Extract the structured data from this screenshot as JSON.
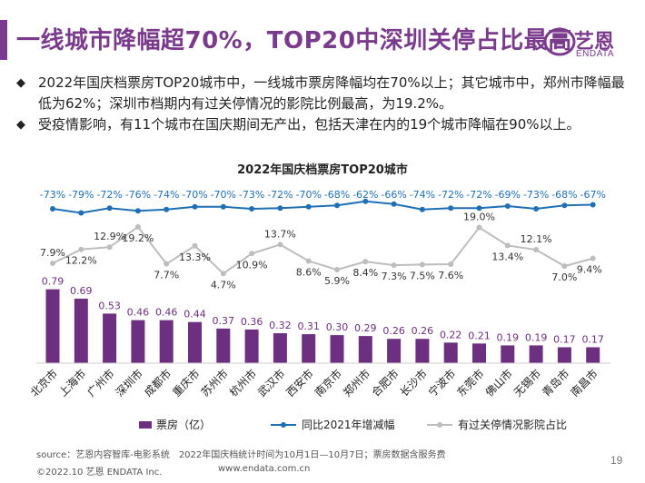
{
  "header": {
    "title": "一线城市降幅超70%，TOP20中深圳关停占比最高",
    "logo_cn": "艺恩",
    "logo_en": "ENDATA"
  },
  "bullets": [
    {
      "marker": "◆",
      "text": "2022年国庆档票房TOP20城市中，一线城市票房降幅均在70%以上；其它城市中，郑州市降幅最低为62%；深圳市档期内有过关停情况的影院比例最高，为19.2%。"
    },
    {
      "marker": "◆",
      "text": "受疫情影响，有11个城市在国庆期间无产出，包括天津在内的19个城市降幅在90%以上。"
    }
  ],
  "chart_data": {
    "type": "bar",
    "title": "2022年国庆档票房TOP20城市",
    "categories": [
      "北京市",
      "上海市",
      "广州市",
      "深圳市",
      "成都市",
      "重庆市",
      "苏州市",
      "杭州市",
      "武汉市",
      "西安市",
      "南京市",
      "郑州市",
      "合肥市",
      "长沙市",
      "宁波市",
      "东莞市",
      "佛山市",
      "无锡市",
      "青岛市",
      "南昌市"
    ],
    "series": [
      {
        "name": "票房（亿）",
        "kind": "bar",
        "color": "#6d2f7f",
        "values": [
          0.79,
          0.69,
          0.53,
          0.46,
          0.46,
          0.44,
          0.37,
          0.36,
          0.32,
          0.31,
          0.3,
          0.29,
          0.26,
          0.26,
          0.22,
          0.21,
          0.19,
          0.19,
          0.17,
          0.17
        ],
        "labels": [
          "0.79",
          "0.69",
          "0.53",
          "0.46",
          "0.46",
          "0.44",
          "0.37",
          "0.36",
          "0.32",
          "0.31",
          "0.30",
          "0.29",
          "0.26",
          "0.26",
          "0.22",
          "0.21",
          "0.19",
          "0.19",
          "0.17",
          "0.17"
        ]
      },
      {
        "name": "同比2021年增减幅",
        "kind": "line",
        "color": "#1f6fb5",
        "values": [
          -73,
          -79,
          -72,
          -76,
          -74,
          -70,
          -70,
          -73,
          -72,
          -70,
          -68,
          -62,
          -66,
          -74,
          -72,
          -72,
          -69,
          -73,
          -68,
          -67
        ],
        "labels": [
          "-73%",
          "-79%",
          "-72%",
          "-76%",
          "-74%",
          "-70%",
          "-70%",
          "-73%",
          "-72%",
          "-70%",
          "-68%",
          "-62%",
          "-66%",
          "-74%",
          "-72%",
          "-72%",
          "-69%",
          "-73%",
          "-68%",
          "-67%"
        ]
      },
      {
        "name": "有过关停情况影院占比",
        "kind": "line",
        "color": "#bdbdbd",
        "values": [
          7.9,
          12.2,
          12.9,
          19.2,
          7.7,
          13.3,
          4.7,
          10.9,
          13.7,
          8.6,
          5.9,
          8.4,
          7.3,
          7.5,
          7.6,
          19.0,
          13.4,
          12.1,
          7.0,
          9.4
        ],
        "labels": [
          "7.9%",
          "12.2%",
          "12.9%",
          "19.2%",
          "7.7%",
          "13.3%",
          "4.7%",
          "10.9%",
          "13.7%",
          "8.6%",
          "5.9%",
          "8.4%",
          "7.3%",
          "7.5%",
          "7.6%",
          "19.0%",
          "13.4%",
          "12.1%",
          "7.0%",
          "9.4%"
        ]
      }
    ],
    "legend_position": "bottom",
    "grid": false
  },
  "footer": {
    "source": "source：艺恩内容智库-电影系统　2022年国庆档统计时间为10月1日—10月7日；票房数据含服务费",
    "copyright": "©2022.10 艺恩 ENDATA Inc.",
    "website": "www.endata.com.cn",
    "page_number": "19"
  }
}
